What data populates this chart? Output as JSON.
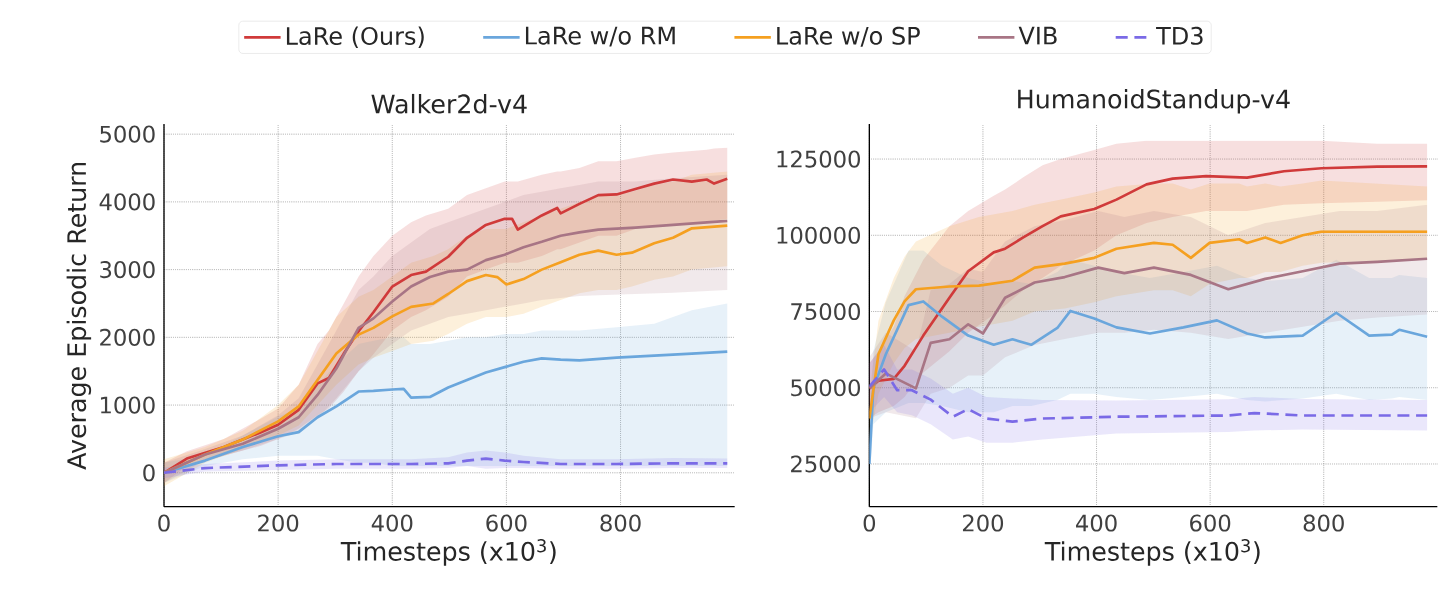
{
  "chart_data": [
    {
      "type": "line",
      "title": "Walker2d-v4",
      "xlabel": "Timesteps (x10$^{3}$)",
      "ylabel": "Average Episodic Return",
      "xlim": [
        0,
        1000
      ],
      "ylim": [
        -500,
        5150
      ],
      "xticks": [
        0,
        200,
        400,
        600,
        800
      ],
      "yticks": [
        0,
        1000,
        2000,
        3000,
        4000,
        5000
      ],
      "grid": true,
      "legend": "top",
      "series": [
        {
          "name": "LaRe (Ours)",
          "color": "#d03a3a",
          "x": [
            0,
            40,
            105,
            170,
            200,
            236,
            269,
            289,
            315,
            341,
            367,
            400,
            433,
            459,
            498,
            531,
            564,
            597,
            610,
            620,
            662,
            689,
            695,
            728,
            761,
            793,
            826,
            859,
            892,
            925,
            951,
            964,
            987
          ],
          "values": [
            0,
            210,
            380,
            600,
            710,
            930,
            1320,
            1400,
            1760,
            2090,
            2370,
            2750,
            2920,
            2970,
            3190,
            3470,
            3660,
            3750,
            3750,
            3590,
            3800,
            3910,
            3830,
            3970,
            4100,
            4110,
            4190,
            4270,
            4330,
            4300,
            4330,
            4270,
            4340
          ],
          "lower": [
            -150,
            100,
            250,
            400,
            500,
            650,
            850,
            950,
            1200,
            1500,
            1750,
            2100,
            2300,
            2400,
            2600,
            2900,
            3000,
            3100,
            3100,
            3100,
            3200,
            3300,
            3300,
            3400,
            3500,
            3500,
            3600,
            3650,
            3670,
            3690,
            3710,
            3720,
            3750
          ],
          "upper": [
            150,
            320,
            500,
            800,
            950,
            1300,
            1900,
            2100,
            2500,
            2900,
            3200,
            3500,
            3700,
            3800,
            3900,
            4100,
            4200,
            4300,
            4300,
            4300,
            4400,
            4450,
            4450,
            4500,
            4600,
            4600,
            4650,
            4700,
            4730,
            4750,
            4770,
            4790,
            4800
          ]
        },
        {
          "name": "LaRe w/o RM",
          "color": "#6aa6dc",
          "x": [
            0,
            72,
            138,
            200,
            236,
            269,
            302,
            341,
            367,
            400,
            420,
            433,
            466,
            498,
            531,
            564,
            597,
            630,
            662,
            695,
            728,
            793,
            859,
            925,
            987
          ],
          "values": [
            0,
            180,
            380,
            540,
            600,
            820,
            980,
            1200,
            1210,
            1230,
            1240,
            1110,
            1120,
            1260,
            1370,
            1480,
            1560,
            1640,
            1690,
            1670,
            1660,
            1700,
            1730,
            1760,
            1790
          ],
          "lower": [
            -150,
            100,
            200,
            250,
            250,
            250,
            200,
            150,
            150,
            100,
            100,
            100,
            100,
            100,
            100,
            100,
            100,
            100,
            100,
            100,
            100,
            100,
            100,
            100,
            100
          ],
          "upper": [
            150,
            260,
            550,
            830,
            950,
            1300,
            1600,
            1900,
            1950,
            2000,
            2000,
            1900,
            1900,
            1950,
            2000,
            2000,
            2050,
            2050,
            2100,
            2100,
            2100,
            2150,
            2200,
            2400,
            2500
          ]
        },
        {
          "name": "LaRe w/o SP",
          "color": "#f5a020",
          "x": [
            0,
            72,
            138,
            200,
            236,
            269,
            302,
            341,
            367,
            400,
            433,
            472,
            498,
            531,
            564,
            584,
            600,
            630,
            662,
            695,
            728,
            761,
            793,
            820,
            859,
            892,
            925,
            987
          ],
          "values": [
            0,
            270,
            490,
            760,
            980,
            1370,
            1760,
            2040,
            2140,
            2310,
            2450,
            2500,
            2640,
            2830,
            2920,
            2890,
            2780,
            2860,
            3000,
            3110,
            3220,
            3280,
            3220,
            3250,
            3390,
            3470,
            3610,
            3650
          ],
          "lower": [
            -200,
            150,
            350,
            550,
            700,
            1000,
            1300,
            1600,
            1700,
            1800,
            1900,
            1950,
            2050,
            2200,
            2300,
            2300,
            2300,
            2350,
            2450,
            2550,
            2650,
            2700,
            2700,
            2750,
            2850,
            2900,
            3000,
            3050
          ],
          "upper": [
            200,
            380,
            620,
            1000,
            1300,
            1800,
            2300,
            2600,
            2700,
            2900,
            3100,
            3200,
            3300,
            3500,
            3600,
            3600,
            3600,
            3700,
            3800,
            3900,
            4000,
            4100,
            4100,
            4150,
            4250,
            4300,
            4400,
            4450
          ]
        },
        {
          "name": "VIB",
          "color": "#a87585",
          "x": [
            0,
            72,
            138,
            200,
            236,
            269,
            302,
            341,
            367,
            400,
            433,
            466,
            498,
            531,
            564,
            597,
            630,
            662,
            695,
            728,
            761,
            826,
            892,
            987
          ],
          "values": [
            0,
            270,
            430,
            650,
            820,
            1150,
            1540,
            2140,
            2280,
            2530,
            2750,
            2890,
            2970,
            3000,
            3140,
            3220,
            3330,
            3410,
            3500,
            3550,
            3590,
            3620,
            3660,
            3720
          ],
          "lower": [
            -150,
            180,
            330,
            500,
            600,
            800,
            1100,
            1500,
            1700,
            1900,
            2100,
            2200,
            2300,
            2350,
            2400,
            2450,
            2500,
            2550,
            2580,
            2610,
            2620,
            2640,
            2660,
            2700
          ],
          "upper": [
            150,
            350,
            550,
            850,
            1100,
            1600,
            2100,
            2700,
            2900,
            3200,
            3400,
            3600,
            3700,
            3800,
            3900,
            4000,
            4100,
            4150,
            4200,
            4250,
            4300,
            4300,
            4350,
            4400
          ]
        },
        {
          "name": "TD3",
          "color": "#7a6ae6",
          "line_style": "dashed",
          "x": [
            0,
            72,
            200,
            302,
            433,
            498,
            531,
            564,
            597,
            630,
            695,
            793,
            892,
            987
          ],
          "values": [
            0,
            70,
            110,
            130,
            130,
            140,
            180,
            210,
            180,
            160,
            130,
            130,
            140,
            140
          ],
          "lower": [
            -80,
            20,
            40,
            60,
            60,
            70,
            100,
            60,
            70,
            70,
            60,
            60,
            70,
            70
          ],
          "upper": [
            80,
            130,
            180,
            200,
            200,
            230,
            300,
            330,
            300,
            250,
            200,
            200,
            220,
            210
          ]
        }
      ]
    },
    {
      "type": "line",
      "title": "HumanoidStandup-v4",
      "xlabel": "Timesteps (x10$^{3}$)",
      "xlim": [
        0,
        1000
      ],
      "ylim": [
        11000,
        136500
      ],
      "xticks": [
        0,
        200,
        400,
        600,
        800
      ],
      "yticks": [
        25000,
        50000,
        75000,
        100000,
        125000
      ],
      "grid": true,
      "series": [
        {
          "color": "#d03a3a",
          "x": [
            0,
            16,
            43,
            62,
            95,
            141,
            174,
            219,
            239,
            271,
            305,
            337,
            396,
            435,
            488,
            534,
            593,
            665,
            730,
            796,
            894,
            982
          ],
          "values": [
            49800,
            52300,
            52900,
            57200,
            67100,
            79500,
            88200,
            94400,
            95600,
            99300,
            103000,
            106200,
            108600,
            111700,
            116700,
            118600,
            119400,
            118900,
            121000,
            122000,
            122500,
            122600
          ],
          "lower": [
            40000,
            42000,
            44000,
            47000,
            55000,
            62000,
            68000,
            74000,
            77000,
            82000,
            86000,
            90000,
            95000,
            100000,
            104000,
            106000,
            108000,
            108000,
            110000,
            110500,
            111000,
            111500
          ],
          "upper": [
            58000,
            62000,
            70000,
            80000,
            92000,
            103000,
            108000,
            113000,
            115000,
            119000,
            123000,
            125000,
            128000,
            130000,
            131000,
            131000,
            131000,
            131000,
            131000,
            131000,
            130000,
            130000
          ]
        },
        {
          "color": "#6aa6dc",
          "x": [
            0,
            7,
            29,
            69,
            95,
            128,
            174,
            219,
            252,
            285,
            331,
            354,
            396,
            435,
            494,
            553,
            612,
            665,
            697,
            763,
            822,
            880,
            920,
            933,
            982
          ],
          "values": [
            25000,
            49800,
            61000,
            77100,
            78300,
            73300,
            67100,
            64100,
            65900,
            64100,
            69600,
            75200,
            72700,
            69800,
            67800,
            69800,
            72100,
            67800,
            66500,
            67100,
            74600,
            67100,
            67400,
            69000,
            66700
          ],
          "lower": [
            18000,
            38000,
            42000,
            45000,
            45000,
            44000,
            42000,
            42000,
            44000,
            44000,
            46000,
            48000,
            48000,
            47000,
            46000,
            47000,
            48000,
            46000,
            45500,
            46500,
            48000,
            46000,
            46500,
            47000,
            46000
          ],
          "upper": [
            32000,
            62000,
            78000,
            95000,
            95000,
            90000,
            86000,
            84000,
            85000,
            84000,
            88000,
            92000,
            90000,
            88000,
            86000,
            88000,
            90000,
            86000,
            85000,
            86000,
            92000,
            86000,
            86000,
            87000,
            86000
          ]
        },
        {
          "color": "#f5a020",
          "x": [
            0,
            16,
            43,
            62,
            82,
            141,
            193,
            252,
            291,
            344,
            396,
            435,
            501,
            534,
            566,
            599,
            651,
            665,
            697,
            724,
            763,
            796,
            982
          ],
          "values": [
            39900,
            61000,
            72100,
            78300,
            82300,
            83200,
            83500,
            85100,
            89400,
            90700,
            92600,
            95600,
            97500,
            96900,
            92600,
            97500,
            98700,
            97500,
            99300,
            97500,
            100000,
            101200,
            101200
          ],
          "lower": [
            32000,
            48000,
            58000,
            63000,
            66000,
            68000,
            70000,
            72000,
            75000,
            76000,
            78000,
            80000,
            82000,
            82000,
            80000,
            84000,
            86000,
            86000,
            88000,
            88000,
            90000,
            91000,
            92000
          ],
          "upper": [
            48000,
            72000,
            86000,
            93000,
            98000,
            103000,
            106000,
            108000,
            110000,
            112000,
            114000,
            116000,
            117000,
            117000,
            115000,
            117000,
            117000,
            116000,
            117000,
            116000,
            117000,
            118000,
            116000
          ]
        },
        {
          "color": "#a87585",
          "x": [
            0,
            29,
            82,
            108,
            141,
            174,
            200,
            239,
            291,
            344,
            403,
            449,
            501,
            566,
            632,
            697,
            763,
            828,
            894,
            982
          ],
          "values": [
            49800,
            54700,
            49800,
            64700,
            65900,
            70800,
            67800,
            79500,
            84500,
            86300,
            89400,
            87600,
            89400,
            87000,
            82300,
            85700,
            88200,
            90700,
            91300,
            92300
          ],
          "lower": [
            40000,
            42000,
            40000,
            48000,
            50000,
            54000,
            54000,
            60000,
            64000,
            66000,
            68000,
            68000,
            69000,
            68000,
            66000,
            68000,
            70000,
            72000,
            73000,
            74000
          ],
          "upper": [
            60000,
            68000,
            62000,
            82000,
            84000,
            89000,
            88000,
            98000,
            103000,
            105000,
            108000,
            106000,
            108000,
            106000,
            100000,
            104000,
            106000,
            108000,
            108000,
            110000
          ]
        },
        {
          "color": "#7a6ae6",
          "line_style": "dashed",
          "x": [
            0,
            26,
            49,
            75,
            108,
            147,
            174,
            206,
            252,
            305,
            435,
            632,
            678,
            763,
            982
          ],
          "values": [
            50400,
            56000,
            49200,
            49200,
            46100,
            40500,
            43000,
            39900,
            38900,
            39900,
            40500,
            40900,
            41700,
            40900,
            40900
          ],
          "lower": [
            42000,
            47000,
            42000,
            41000,
            38000,
            33000,
            34000,
            32000,
            32000,
            33000,
            35000,
            35500,
            36000,
            36300,
            36000
          ],
          "upper": [
            58000,
            64000,
            56000,
            56000,
            53000,
            48000,
            50000,
            47000,
            46500,
            46000,
            45800,
            46200,
            47000,
            46300,
            46000
          ]
        }
      ]
    }
  ]
}
